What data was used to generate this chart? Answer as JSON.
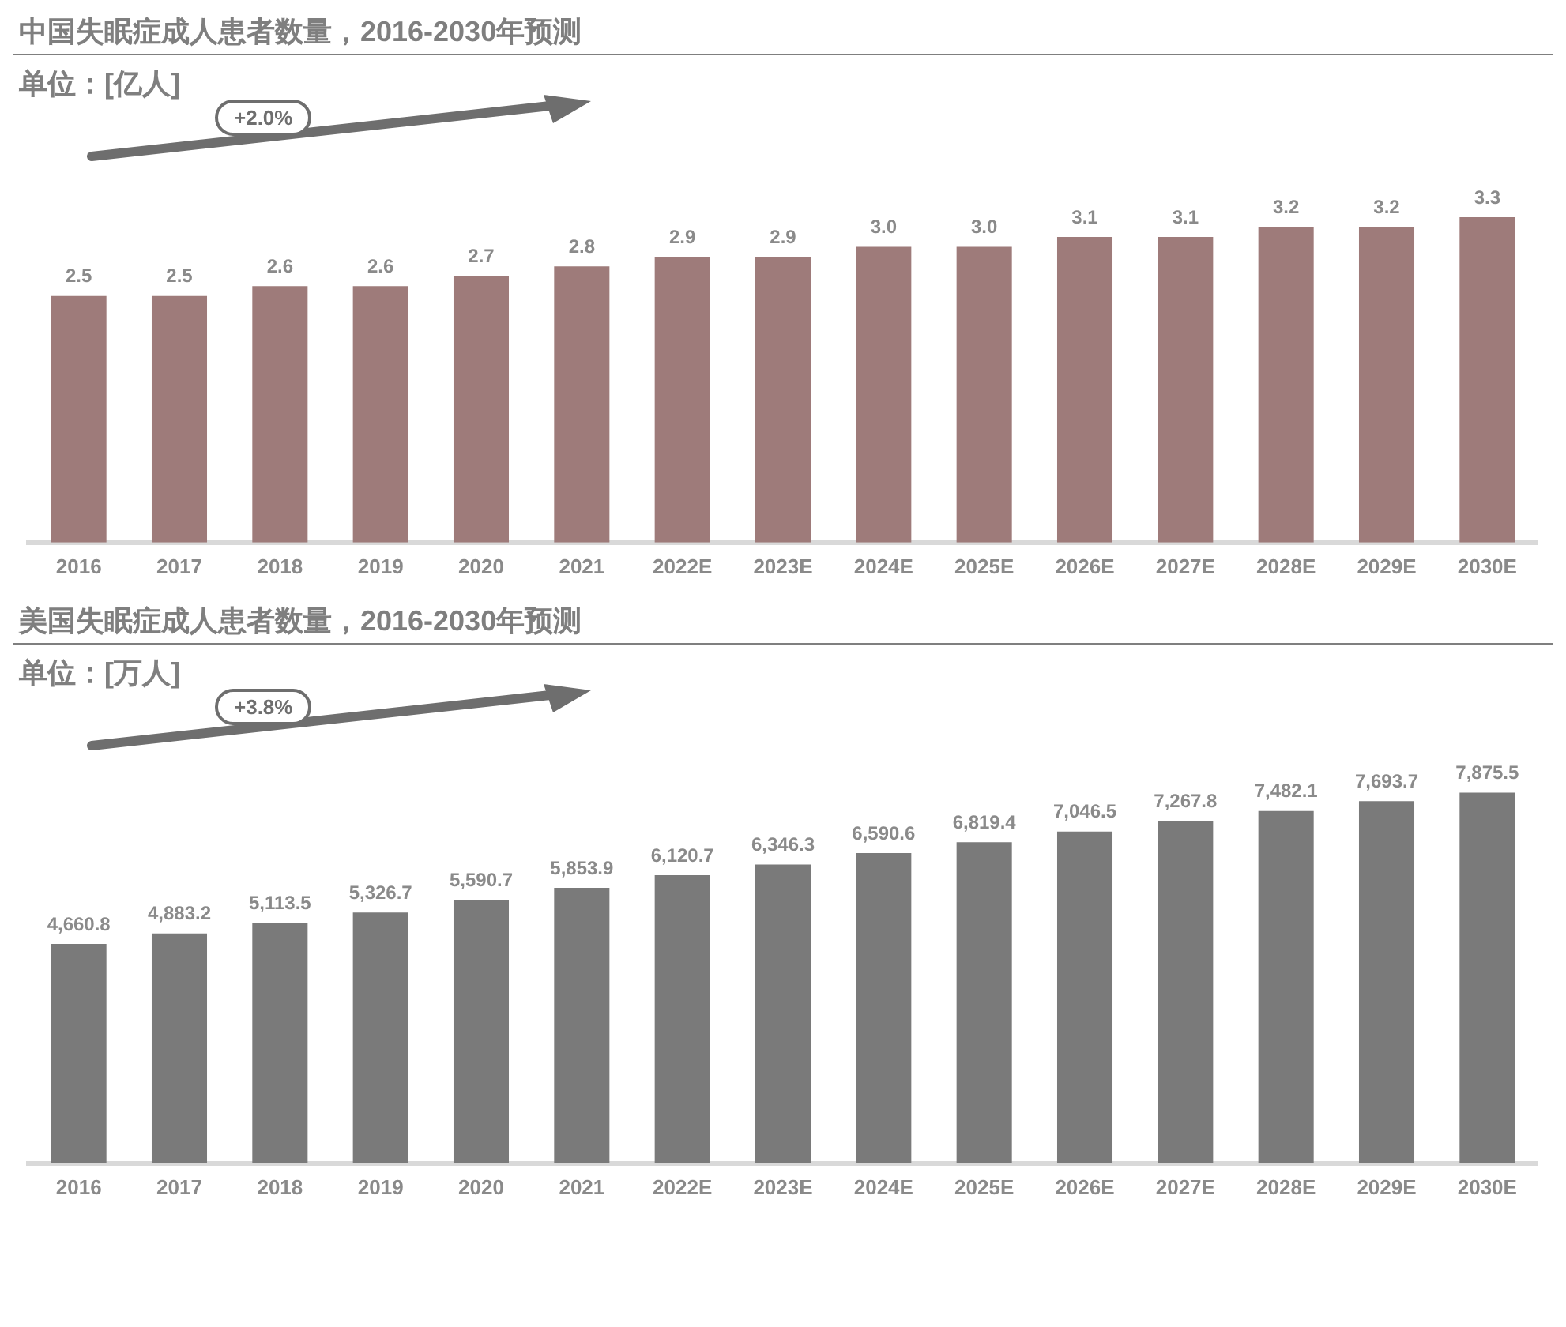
{
  "chart_data": [
    {
      "type": "bar",
      "title": "中国失眠症成人患者数量，2016-2030年预测",
      "subtitle": "单位：[亿人]",
      "categories": [
        "2016",
        "2017",
        "2018",
        "2019",
        "2020",
        "2021",
        "2022E",
        "2023E",
        "2024E",
        "2025E",
        "2026E",
        "2027E",
        "2028E",
        "2029E",
        "2030E"
      ],
      "series": [
        {
          "color": "#9e7b7a",
          "values": [
            2.5,
            2.5,
            2.6,
            2.6,
            2.7,
            2.8,
            2.9,
            2.9,
            3.0,
            3.0,
            3.1,
            3.1,
            3.2,
            3.2,
            3.3
          ],
          "value_labels": [
            "2.5",
            "2.5",
            "2.6",
            "2.6",
            "2.7",
            "2.8",
            "2.9",
            "2.9",
            "3.0",
            "3.0",
            "3.1",
            "3.1",
            "3.2",
            "3.2",
            "3.3"
          ]
        }
      ],
      "tick_labels": "x",
      "grid": false,
      "legend": false,
      "annotations": [
        "+2.0%"
      ]
    },
    {
      "type": "bar",
      "title": "美国失眠症成人患者数量，2016-2030年预测",
      "subtitle": "单位：[万人]",
      "categories": [
        "2016",
        "2017",
        "2018",
        "2019",
        "2020",
        "2021",
        "2022E",
        "2023E",
        "2024E",
        "2025E",
        "2026E",
        "2027E",
        "2028E",
        "2029E",
        "2030E"
      ],
      "series": [
        {
          "color": "#7a7a7a",
          "values": [
            4660.8,
            4883.2,
            5113.5,
            5326.7,
            5590.7,
            5853.9,
            6120.7,
            6346.3,
            6590.6,
            6819.4,
            7046.5,
            7267.8,
            7482.1,
            7693.7,
            7875.5
          ],
          "value_labels": [
            "4,660.8",
            "4,883.2",
            "5,113.5",
            "5,326.7",
            "5,590.7",
            "5,853.9",
            "6,120.7",
            "6,346.3",
            "6,590.6",
            "6,819.4",
            "7,046.5",
            "7,267.8",
            "7,482.1",
            "7,693.7",
            "7,875.5"
          ]
        }
      ],
      "tick_labels": "x",
      "grid": false,
      "legend": false,
      "annotations": [
        "+3.8%"
      ]
    }
  ]
}
